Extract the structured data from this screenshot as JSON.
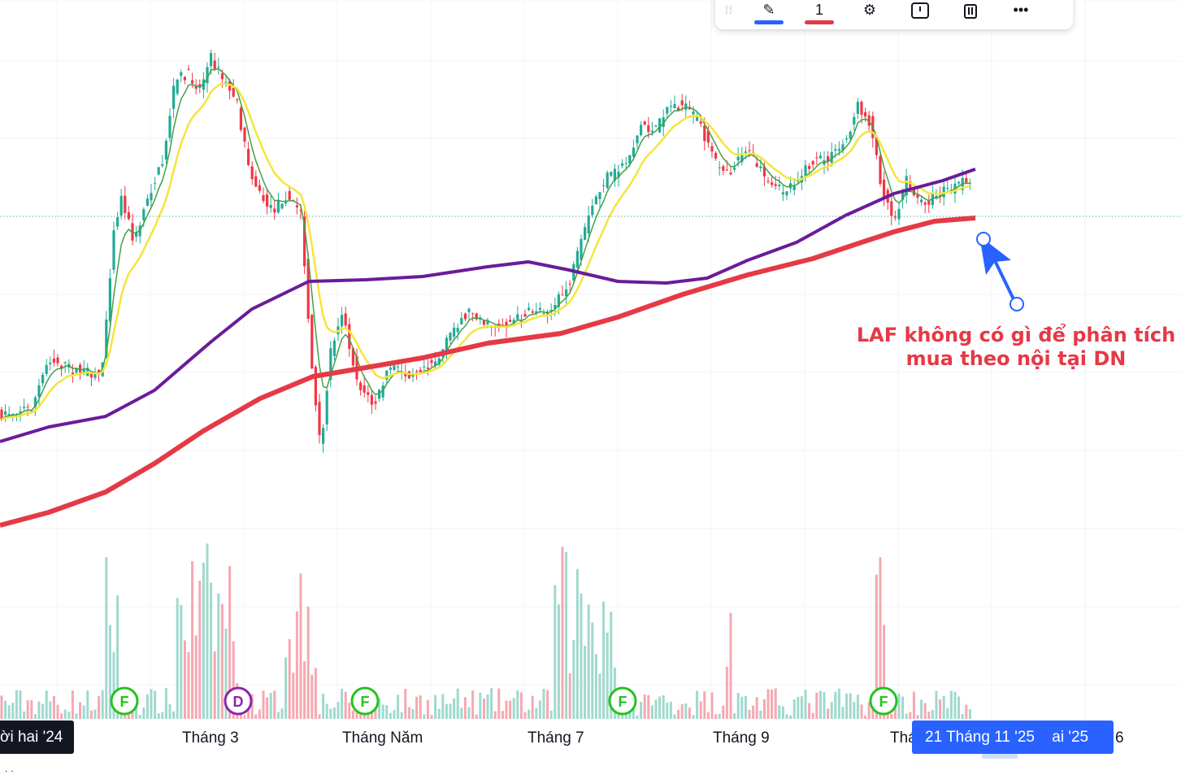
{
  "chart_data": {
    "type": "candlestick",
    "title": "",
    "colors": {
      "up": "#22ab94",
      "down": "#f23645",
      "up_volume": "#9fd9cd",
      "down_volume": "#f5a8b0",
      "ma_fast": "#43a047",
      "ma_mid": "#f5e53a",
      "ma_slow": "#6a1b9a",
      "ma_long": "#e53946",
      "earnings": "#22c41f",
      "dividend": "#8e24aa",
      "annotation": "#e53946",
      "arrow": "#2962ff"
    },
    "x_axis_labels": [
      {
        "label": "ời hai '24",
        "style": "dark"
      },
      {
        "label": "Tháng 3"
      },
      {
        "label": "Tháng Năm"
      },
      {
        "label": "Tháng 7"
      },
      {
        "label": "Tháng 9"
      },
      {
        "label": "Thá"
      },
      {
        "label": "21 Tháng 11 '25",
        "style": "crosshair"
      },
      {
        "label": "ai '25"
      },
      {
        "label": "6"
      }
    ],
    "event_markers": [
      {
        "label": "F",
        "type": "earnings"
      },
      {
        "label": "D",
        "type": "dividend"
      },
      {
        "label": "F",
        "type": "earnings"
      },
      {
        "label": "F",
        "type": "earnings"
      },
      {
        "label": "F",
        "type": "earnings"
      }
    ],
    "moving_averages": [
      {
        "color": "ma_fast"
      },
      {
        "color": "ma_mid"
      },
      {
        "color": "ma_slow"
      },
      {
        "color": "ma_long"
      }
    ],
    "annotation_text": "LAF không có gì để phân tích mua theo nội tại DN",
    "gridlines": true
  },
  "toolbar": {
    "items": [
      {
        "icon": "drag-handle-icon",
        "label": "⁞⁞"
      },
      {
        "icon": "line-color-icon",
        "label": "",
        "color": "#2962ff"
      },
      {
        "icon": "line-width-icon",
        "label": "1",
        "color": "#e53946"
      },
      {
        "icon": "gear-icon",
        "label": "⚙"
      },
      {
        "icon": "alert-icon",
        "label": "!"
      },
      {
        "icon": "trash-icon",
        "label": "🗑"
      },
      {
        "icon": "more-icon",
        "label": "•••"
      }
    ]
  },
  "annotation": {
    "line1": "LAF không có gì để phân tích",
    "line2": "mua theo nội tại DN"
  },
  "x_axis": {
    "label_first": "ời hai '24",
    "label_mar": "Tháng 3",
    "label_may": "Tháng Năm",
    "label_jul": "Tháng 7",
    "label_sep": "Tháng 9",
    "label_nov_partial": "Thá",
    "label_crosshair": "21 Tháng 11 '25",
    "label_crosshair_tail": "ai '25",
    "label_last": "6"
  }
}
